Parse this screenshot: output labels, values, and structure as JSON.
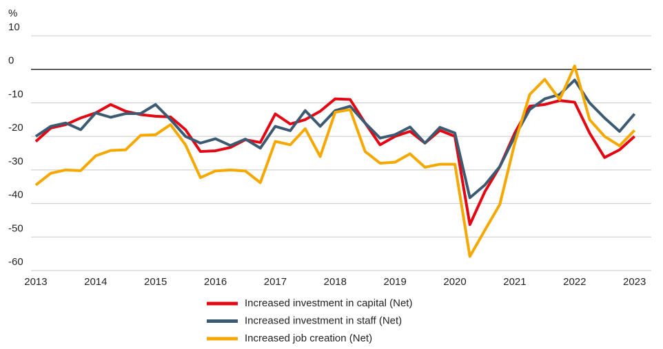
{
  "chart_data": {
    "type": "line",
    "y_label": "%",
    "x": [
      2013,
      2013.25,
      2013.5,
      2013.75,
      2014,
      2014.25,
      2014.5,
      2014.75,
      2015,
      2015.25,
      2015.5,
      2015.75,
      2016,
      2016.25,
      2016.5,
      2016.75,
      2017,
      2017.25,
      2017.5,
      2017.75,
      2018,
      2018.25,
      2018.5,
      2018.75,
      2019,
      2019.25,
      2019.5,
      2019.75,
      2020,
      2020.25,
      2020.5,
      2020.75,
      2021,
      2021.25,
      2021.5,
      2021.75,
      2022,
      2022.25,
      2022.5,
      2022.75,
      2023
    ],
    "series": [
      {
        "name": "Increased investment in capital (Net)",
        "color": "#e30613",
        "values": [
          -21.5,
          -17.5,
          -16.5,
          -14.5,
          -13,
          -10.5,
          -12.5,
          -13.5,
          -14,
          -14.2,
          -18,
          -24.5,
          -24.3,
          -23.3,
          -21,
          -21.8,
          -13.3,
          -16.3,
          -15,
          -12.5,
          -8.8,
          -9,
          -16,
          -22.5,
          -20,
          -18.5,
          -22,
          -18.2,
          -20,
          -46.3,
          -36.5,
          -29,
          -19,
          -11,
          -10.5,
          -9.3,
          -9.8,
          -19,
          -26.3,
          -24,
          -20
        ]
      },
      {
        "name": "Increased investment in staff (Net)",
        "color": "#3d5a73",
        "values": [
          -20,
          -17,
          -16,
          -18,
          -13,
          -14.3,
          -13.2,
          -13.2,
          -10.5,
          -15,
          -20,
          -22,
          -20.7,
          -22.7,
          -20.8,
          -23.5,
          -17,
          -18.3,
          -12.3,
          -17,
          -12.3,
          -11,
          -16,
          -20.5,
          -19.5,
          -17.2,
          -22,
          -17.3,
          -19,
          -38.3,
          -34.5,
          -29,
          -20,
          -12,
          -8.8,
          -7.5,
          -3.2,
          -10,
          -14.5,
          -18.5,
          -13.3
        ]
      },
      {
        "name": "Increased job creation (Net)",
        "color": "#f5a800",
        "values": [
          -34.5,
          -31,
          -30,
          -30.2,
          -25.8,
          -24.2,
          -24,
          -19.7,
          -19.5,
          -16.5,
          -22.5,
          -32.3,
          -30.3,
          -30,
          -30.3,
          -33.8,
          -21.5,
          -22.5,
          -17.7,
          -26,
          -12.8,
          -12,
          -24.5,
          -28,
          -27.7,
          -25.2,
          -29.2,
          -28.3,
          -28.3,
          -55.8,
          -48,
          -40.3,
          -22,
          -7.5,
          -3,
          -9,
          1,
          -15,
          -20,
          -22.8,
          -18.2
        ]
      }
    ],
    "xlim": [
      2012.92,
      2023.28
    ],
    "xticks": [
      2013,
      2014,
      2015,
      2016,
      2017,
      2018,
      2019,
      2020,
      2021,
      2022,
      2023
    ],
    "ylim": [
      -60,
      10
    ],
    "yticks": [
      10,
      0,
      -10,
      -20,
      -30,
      -40,
      -50,
      -60
    ],
    "grid": true
  }
}
